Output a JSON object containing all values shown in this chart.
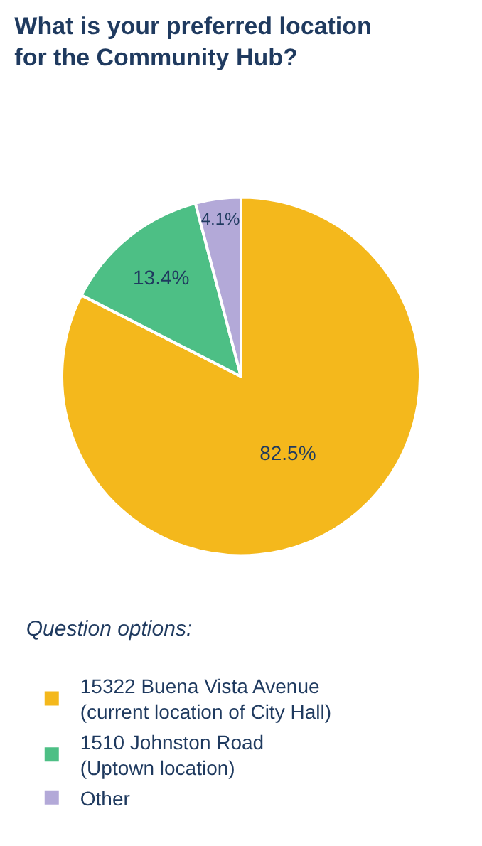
{
  "chart_data": {
    "type": "pie",
    "title": "What is your preferred location for the Community Hub?",
    "legend_title": "Question options:",
    "legend": "bottom",
    "categories": [
      "15322 Buena Vista Avenue\n(current location of City Hall)",
      "1510 Johnston Road\n(Uptown location)",
      "Other"
    ],
    "values": [
      82.5,
      13.4,
      4.1
    ],
    "colors": [
      "#f4b81c",
      "#4dbf85",
      "#b3a9d8"
    ],
    "value_labels": [
      "82.5%",
      "13.4%",
      "4.1%"
    ]
  }
}
